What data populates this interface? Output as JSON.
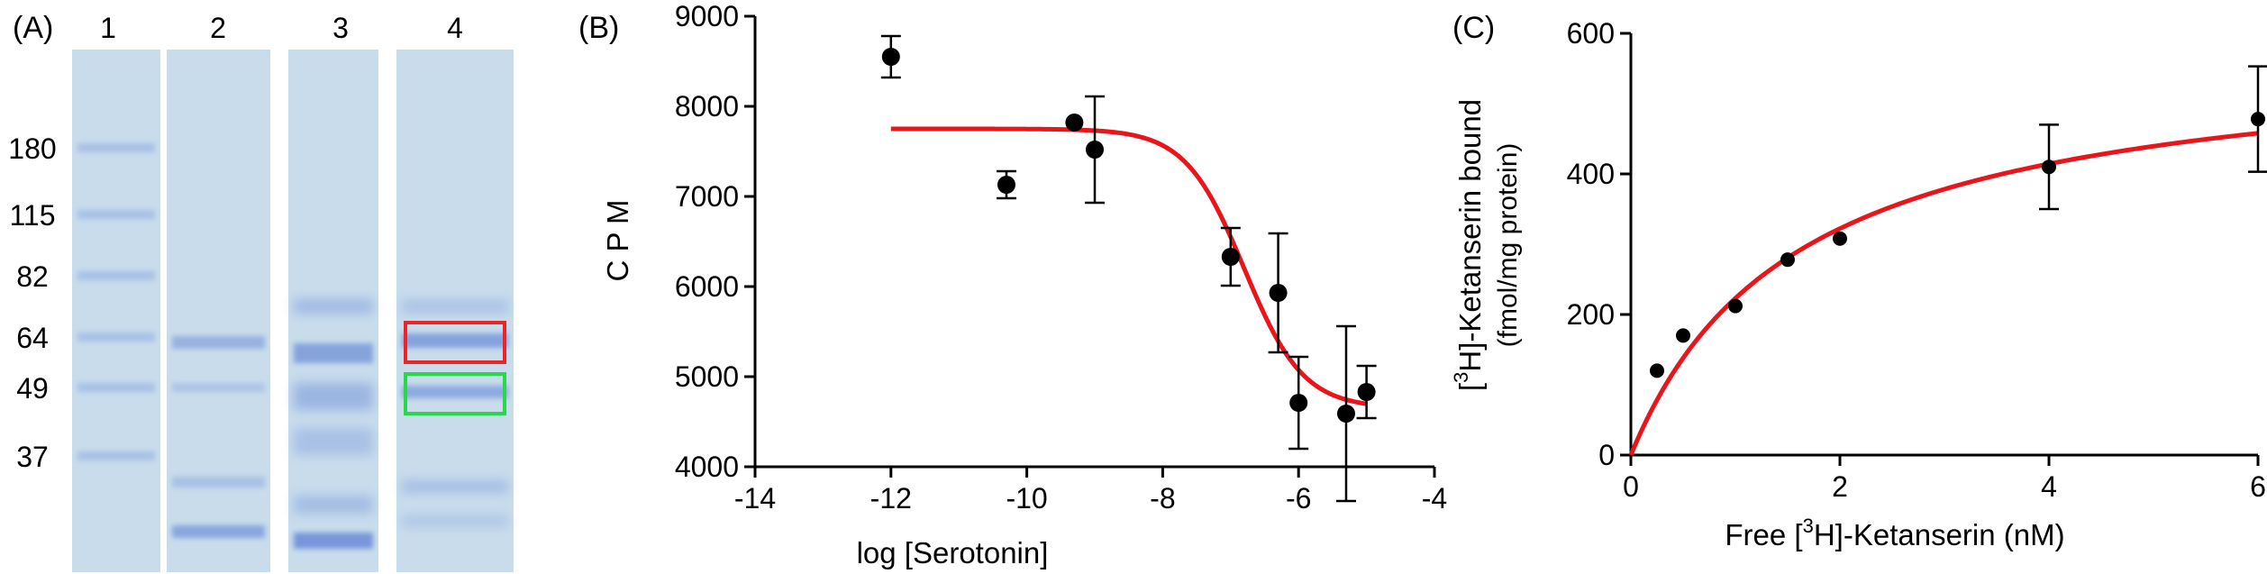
{
  "panels": {
    "a": {
      "label": "(A)"
    },
    "b": {
      "label": "(B)"
    },
    "c": {
      "label": "(C)"
    }
  },
  "gel": {
    "lane_labels": [
      "1",
      "2",
      "3",
      "4"
    ],
    "marker_labels": [
      "180",
      "115",
      "82",
      "64",
      "49",
      "37"
    ],
    "marker_kda": [
      180,
      115,
      82,
      64,
      49,
      37
    ],
    "background_color": "#c8dcec",
    "band_color": "#6f8fd8",
    "highlight_boxes": [
      {
        "lane": 4,
        "band_kda": 64,
        "color": "#e8262a"
      },
      {
        "lane": 4,
        "band_kda": 49,
        "color": "#28d84a"
      }
    ]
  },
  "chart_data": [
    {
      "type": "scatter",
      "xlabel": "log [Serotonin]",
      "ylabel": "C P M",
      "xlim": [
        -14,
        -4
      ],
      "ylim": [
        4000,
        9000
      ],
      "xticks": [
        -14,
        -12,
        -10,
        -8,
        -6,
        -4
      ],
      "yticks": [
        4000,
        5000,
        6000,
        7000,
        8000,
        9000
      ],
      "xtick_labels": [
        "-14",
        "-12",
        "-10",
        "-8",
        "-6",
        "-4"
      ],
      "ytick_labels": [
        "4000",
        "5000",
        "6000",
        "7000",
        "8000",
        "9000"
      ],
      "points": [
        {
          "x": -12,
          "y": 8550,
          "err": 230
        },
        {
          "x": -10.3,
          "y": 7130,
          "err": 150
        },
        {
          "x": -9.3,
          "y": 7820,
          "err": 0
        },
        {
          "x": -9.0,
          "y": 7520,
          "err": 590
        },
        {
          "x": -7.0,
          "y": 6330,
          "err": 320
        },
        {
          "x": -6.3,
          "y": 5930,
          "err": 660
        },
        {
          "x": -6.0,
          "y": 4710,
          "err": 510
        },
        {
          "x": -5.3,
          "y": 4590,
          "err": 970
        },
        {
          "x": -5.0,
          "y": 4830,
          "err": 290
        }
      ],
      "fit": {
        "model": "sigmoid",
        "top": 7750,
        "bottom": 4650,
        "logIC50": -6.8,
        "hill": 1.0,
        "x_range": [
          -12,
          -5
        ],
        "color": "#e8151a"
      },
      "marker_color": "#000000"
    },
    {
      "type": "scatter",
      "xlabel_parts": [
        "Free [",
        "3",
        "H]-Ketanserin (nM)"
      ],
      "ylabel_line1_parts": [
        "[",
        "3",
        "H]-Ketanserin bound"
      ],
      "ylabel_line2": "(fmol/mg protein)",
      "xlim": [
        0,
        6
      ],
      "ylim": [
        0,
        600
      ],
      "xticks": [
        0,
        2,
        4,
        6
      ],
      "yticks": [
        0,
        200,
        400,
        600
      ],
      "xtick_labels": [
        "0",
        "2",
        "4",
        "6"
      ],
      "ytick_labels": [
        "0",
        "200",
        "400",
        "600"
      ],
      "points": [
        {
          "x": 0.25,
          "y": 120,
          "err": 0
        },
        {
          "x": 0.5,
          "y": 170,
          "err": 0
        },
        {
          "x": 1.0,
          "y": 212,
          "err": 0
        },
        {
          "x": 1.5,
          "y": 278,
          "err": 0
        },
        {
          "x": 2.0,
          "y": 308,
          "err": 0
        },
        {
          "x": 4.0,
          "y": 410,
          "err": 60
        },
        {
          "x": 6.0,
          "y": 478,
          "err": 75
        }
      ],
      "fit": {
        "model": "hyperbola",
        "bmax": 580,
        "kd": 1.6,
        "x_range": [
          0,
          6
        ],
        "color": "#e8151a"
      },
      "marker_color": "#000000"
    }
  ]
}
